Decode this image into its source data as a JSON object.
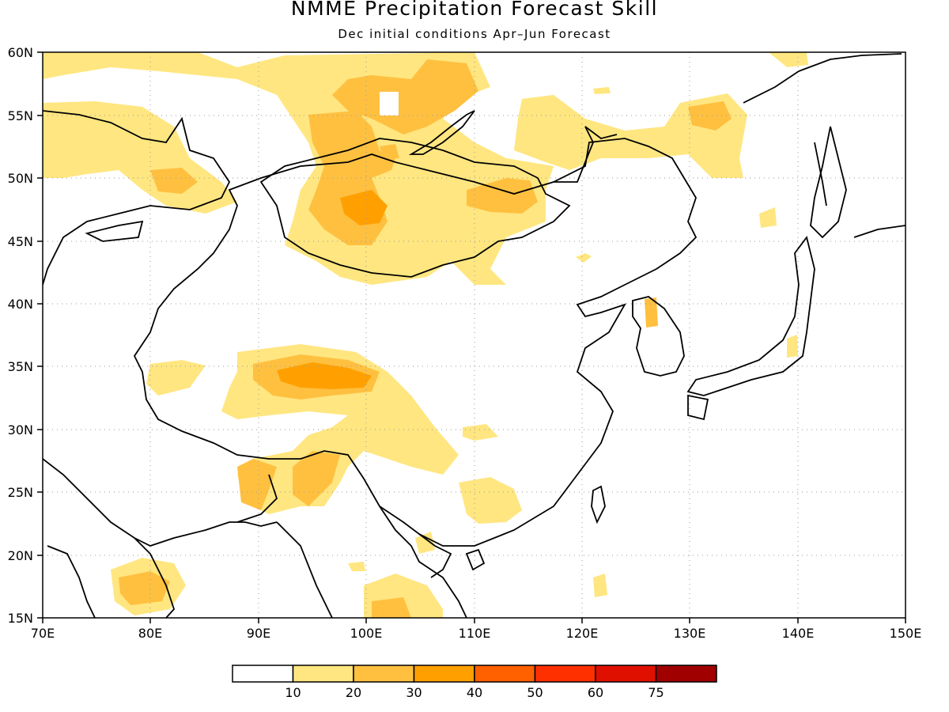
{
  "title": "NMME Precipitation Forecast Skill",
  "subtitle": "Dec initial conditions  Apr–Jun Forecast",
  "map": {
    "lon_range": [
      70,
      150
    ],
    "lat_range": [
      15,
      60
    ],
    "lon_ticks": [
      "70E",
      "80E",
      "90E",
      "100E",
      "110E",
      "120E",
      "130E",
      "140E",
      "150E"
    ],
    "lat_ticks": [
      "15N",
      "20N",
      "25N",
      "30N",
      "35N",
      "40N",
      "45N",
      "50N",
      "55N",
      "60N"
    ],
    "grid": "dotted"
  },
  "colorbar": {
    "levels": [
      "10",
      "20",
      "30",
      "40",
      "50",
      "60",
      "75"
    ],
    "colors": [
      "#ffffff",
      "#ffe680",
      "#ffc040",
      "#ffa000",
      "#ff6000",
      "#ff3000",
      "#e01000",
      "#a00000"
    ]
  }
}
